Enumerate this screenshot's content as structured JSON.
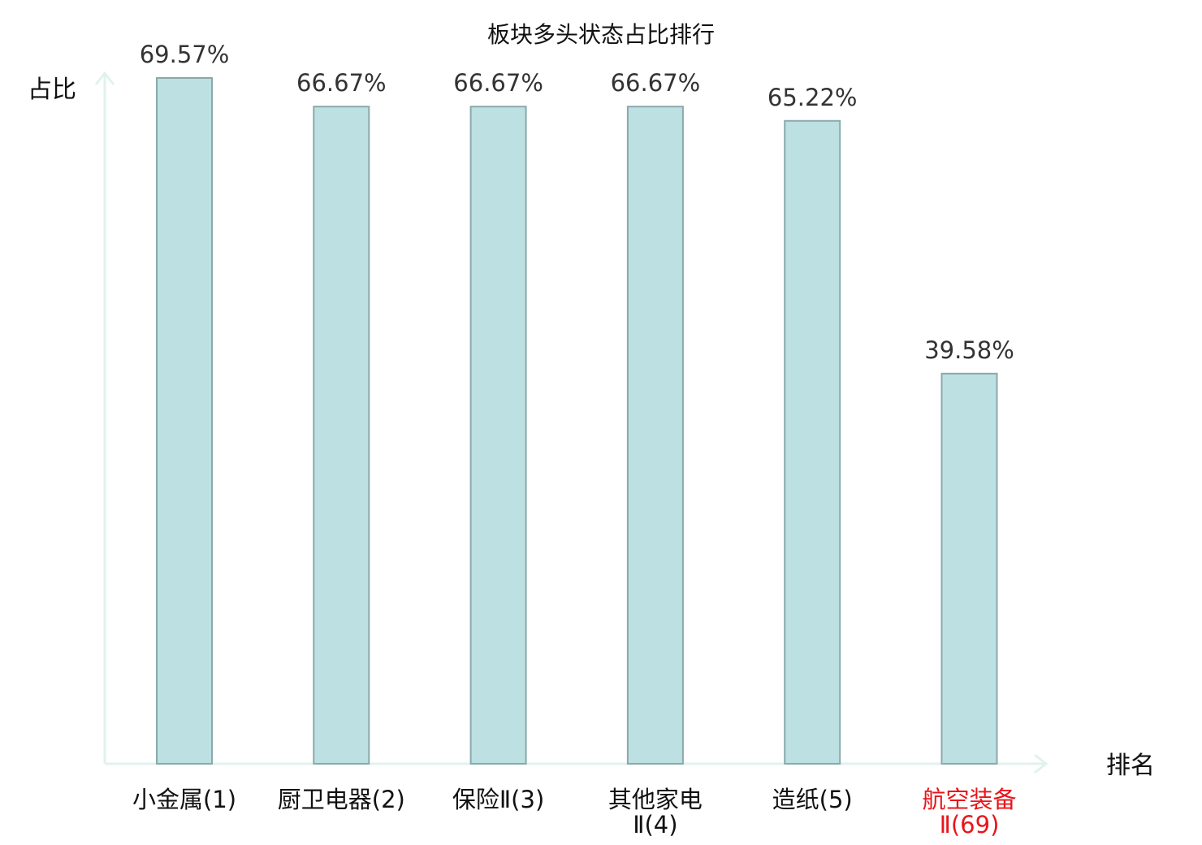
{
  "chart_data": {
    "type": "bar",
    "title": "板块多头状态占比排行",
    "ylabel": "占比",
    "xlabel": "排名",
    "ylim": [
      0,
      70
    ],
    "grid": false,
    "categories": [
      {
        "lines": [
          "小金属(1)"
        ],
        "highlight": false
      },
      {
        "lines": [
          "厨卫电器(2)"
        ],
        "highlight": false
      },
      {
        "lines": [
          "保险Ⅱ(3)"
        ],
        "highlight": false
      },
      {
        "lines": [
          "其他家电",
          "Ⅱ(4)"
        ],
        "highlight": false
      },
      {
        "lines": [
          "造纸(5)"
        ],
        "highlight": false
      },
      {
        "lines": [
          "航空装备",
          "Ⅱ(69)"
        ],
        "highlight": true
      }
    ],
    "values": [
      69.57,
      66.67,
      66.67,
      66.67,
      65.22,
      39.58
    ],
    "value_labels": [
      "69.57%",
      "66.67%",
      "66.67%",
      "66.67%",
      "65.22%",
      "39.58%"
    ]
  },
  "colors": {
    "bar_fill": "#bde0e3",
    "bar_stroke": "#8aa9ab",
    "axis": "#e0f2ef",
    "text": "#111111",
    "value_text": "#333333",
    "highlight": "#e8151b"
  }
}
